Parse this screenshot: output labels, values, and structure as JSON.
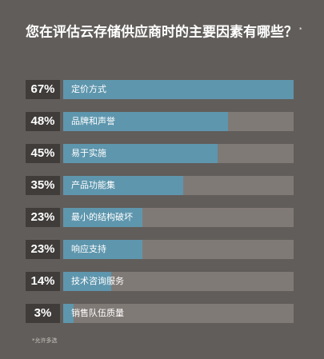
{
  "title": "您在评估云存储供应商时的主要因素有哪些？",
  "title_mark": "*",
  "footnote": "*允许多选",
  "colors": {
    "background": "#615d5a",
    "bar": "#5e96ad",
    "track": "#807a76",
    "percent_box": "#3f3c3a"
  },
  "chart_data": {
    "type": "bar",
    "orientation": "horizontal",
    "title": "您在评估云存储供应商时的主要因素有哪些？",
    "categories": [
      "定价方式",
      "品牌和声誉",
      "易于实施",
      "产品功能集",
      "最小的结构破坏",
      "响应支持",
      "技术咨询服务",
      "销售队伍质量"
    ],
    "values": [
      67,
      48,
      45,
      35,
      23,
      23,
      14,
      3
    ],
    "value_labels": [
      "67%",
      "48%",
      "45%",
      "35%",
      "23%",
      "23%",
      "14%",
      "3%"
    ],
    "unit": "%",
    "xlim": [
      0,
      67
    ],
    "grid": false,
    "legend": "none"
  }
}
